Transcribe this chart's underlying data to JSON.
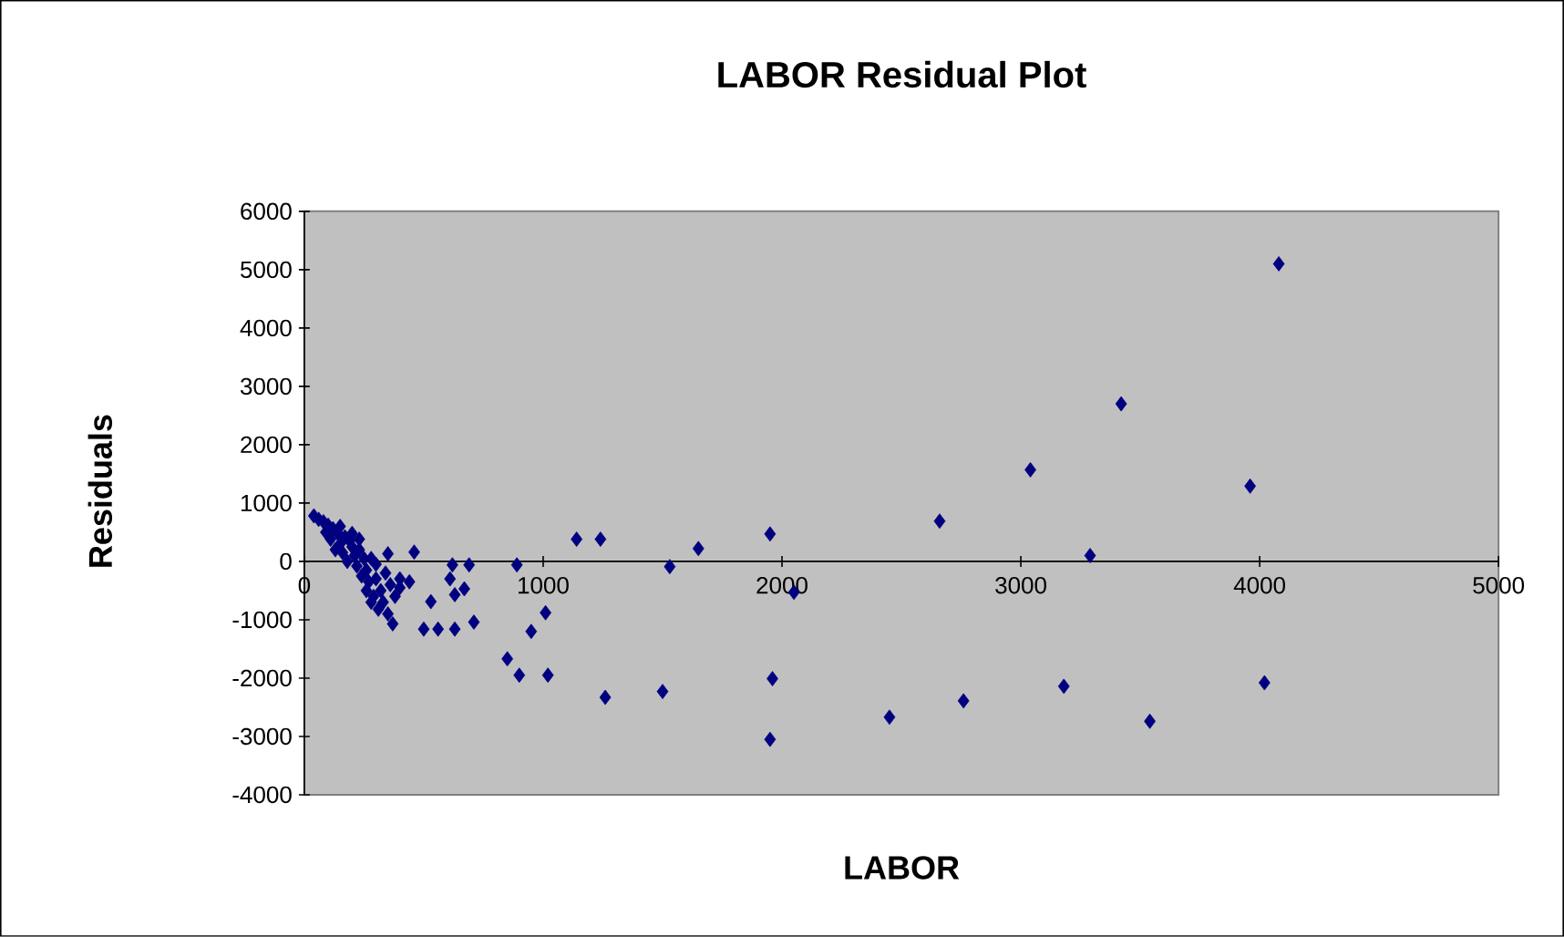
{
  "chart_data": {
    "type": "scatter",
    "title": "LABOR  Residual Plot",
    "xlabel": "LABOR",
    "ylabel": "Residuals",
    "xlim": [
      0,
      5000
    ],
    "xticks": [
      0,
      1000,
      2000,
      3000,
      4000,
      5000
    ],
    "ylim": [
      -4000,
      6000
    ],
    "yticks": [
      -4000,
      -3000,
      -2000,
      -1000,
      0,
      1000,
      2000,
      3000,
      4000,
      5000,
      6000
    ],
    "grid": false,
    "marker": "diamond",
    "series": [
      {
        "color": "#000080",
        "x": [
          40,
          60,
          80,
          100,
          90,
          120,
          140,
          110,
          150,
          170,
          190,
          130,
          160,
          200,
          210,
          230,
          250,
          180,
          220,
          260,
          280,
          300,
          240,
          270,
          300,
          320,
          290,
          330,
          310,
          340,
          360,
          380,
          350,
          400,
          280,
          260,
          350,
          150,
          200,
          230,
          400,
          440,
          460,
          620,
          690,
          610,
          670,
          530,
          630,
          370,
          500,
          560,
          630,
          710,
          890,
          950,
          850,
          900,
          1020,
          1010,
          1140,
          1240,
          1530,
          1650,
          1950,
          2050,
          2660,
          3040,
          3290,
          3960,
          3420,
          4080,
          1260,
          1500,
          1960,
          1950,
          2450,
          2760,
          3180,
          3540,
          4020
        ],
        "values": [
          780,
          720,
          680,
          620,
          500,
          560,
          480,
          380,
          300,
          420,
          350,
          200,
          150,
          250,
          100,
          200,
          50,
          0,
          -80,
          -150,
          50,
          -50,
          -250,
          -350,
          -300,
          -500,
          -600,
          -700,
          -820,
          -200,
          -400,
          -600,
          -900,
          -300,
          -700,
          -500,
          130,
          600,
          480,
          380,
          -450,
          -350,
          160,
          -60,
          -60,
          -300,
          -470,
          -690,
          -570,
          -1070,
          -1160,
          -1160,
          -1160,
          -1040,
          -60,
          -1200,
          -1670,
          -1950,
          -1950,
          -880,
          380,
          380,
          -90,
          220,
          470,
          -530,
          690,
          1570,
          100,
          1290,
          2700,
          5100,
          -2330,
          -2230,
          -2010,
          -3050,
          -2670,
          -2390,
          -2140,
          -2740,
          -2080
        ]
      }
    ]
  }
}
